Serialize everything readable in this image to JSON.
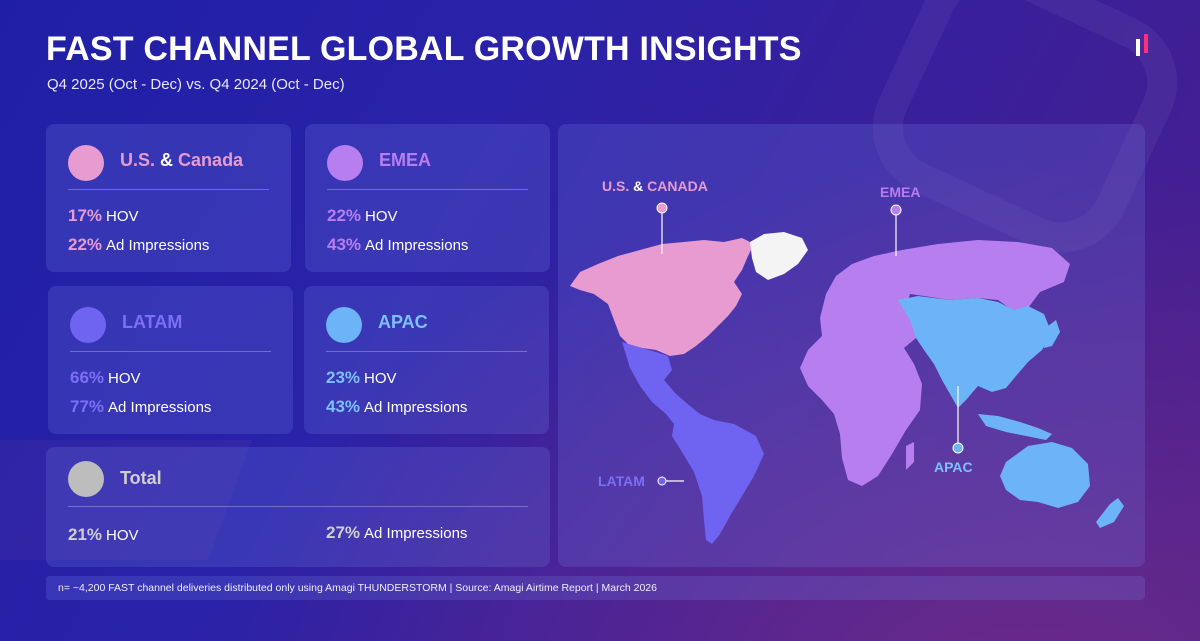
{
  "header": {
    "title": "FAST CHANNEL GLOBAL GROWTH INSIGHTS",
    "subtitle": "Q4 2025 (Oct - Dec) vs. Q4 2024 (Oct - Dec)"
  },
  "logo": {
    "name": "brand-logo"
  },
  "colors": {
    "us_canada": "#e89bd0",
    "emea": "#b77ef0",
    "latam": "#6f63f2",
    "apac": "#6db3f7",
    "total": "#bdbdbd"
  },
  "regions": {
    "us_canada": {
      "name_part1": "U.S.",
      "amp": "&",
      "name_part2": "Canada",
      "hov_pct": "17%",
      "hov_label": "HOV",
      "ad_pct": "22%",
      "ad_label": "Ad Impressions"
    },
    "emea": {
      "name": "EMEA",
      "hov_pct": "22%",
      "hov_label": "HOV",
      "ad_pct": "43%",
      "ad_label": "Ad Impressions"
    },
    "latam": {
      "name": "LATAM",
      "hov_pct": "66%",
      "hov_label": "HOV",
      "ad_pct": "77%",
      "ad_label": "Ad Impressions"
    },
    "apac": {
      "name": "APAC",
      "hov_pct": "23%",
      "hov_label": "HOV",
      "ad_pct": "43%",
      "ad_label": "Ad Impressions"
    },
    "total": {
      "name": "Total",
      "hov_pct": "21%",
      "hov_label": "HOV",
      "ad_pct": "27%",
      "ad_label": "Ad Impressions"
    }
  },
  "map": {
    "labels": {
      "us_canada_part1": "U.S.",
      "amp": "&",
      "us_canada_part2": "CANADA",
      "emea": "EMEA",
      "latam": "LATAM",
      "apac": "APAC"
    }
  },
  "footer": {
    "note": "n= ~4,200 FAST channel deliveries distributed only using Amagi THUNDERSTORM | Source: Amagi Airtime Report | March 2026"
  }
}
